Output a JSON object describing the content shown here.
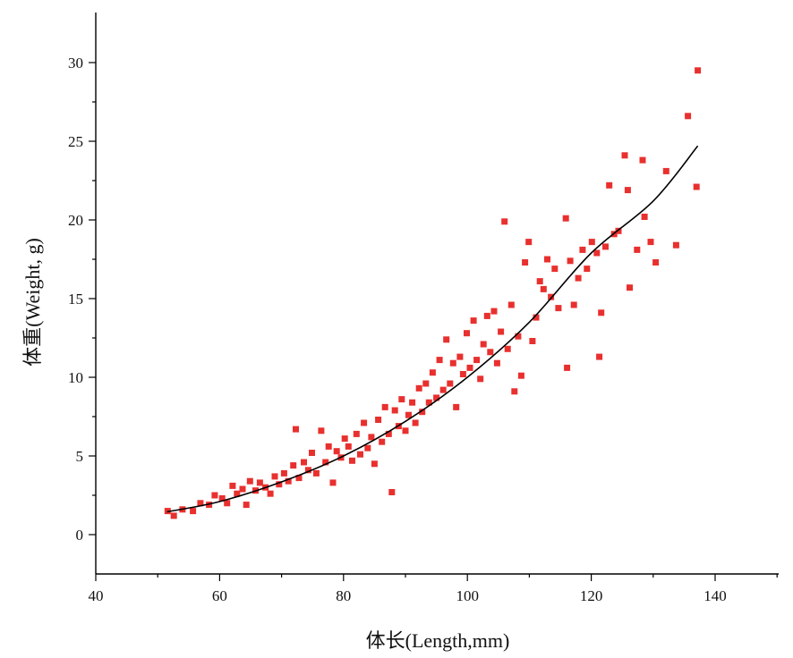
{
  "chart_data": {
    "type": "scatter",
    "xlabel": "体长(Length,mm)",
    "ylabel": "体重(Weight, g)",
    "xlim": [
      40,
      150
    ],
    "ylim": [
      -2.5,
      32.5
    ],
    "x_ticks": [
      40,
      60,
      80,
      100,
      120,
      140
    ],
    "y_ticks": [
      0,
      5,
      10,
      15,
      20,
      25,
      30
    ],
    "grid": false,
    "legend": "none",
    "colors": {
      "points": "#e8302e",
      "fit_line": "#000000",
      "axes": "#000000"
    },
    "series": [
      {
        "kind": "points",
        "marker": "square",
        "points": [
          [
            51.6,
            1.5
          ],
          [
            52.6,
            1.2
          ],
          [
            54,
            1.6
          ],
          [
            55.7,
            1.5
          ],
          [
            56.9,
            2.0
          ],
          [
            58.3,
            1.9
          ],
          [
            59.2,
            2.5
          ],
          [
            60.4,
            2.3
          ],
          [
            61.2,
            2.0
          ],
          [
            62.1,
            3.1
          ],
          [
            62.8,
            2.6
          ],
          [
            63.7,
            2.9
          ],
          [
            64.3,
            1.9
          ],
          [
            64.9,
            3.4
          ],
          [
            65.8,
            2.8
          ],
          [
            66.5,
            3.3
          ],
          [
            67.4,
            3.0
          ],
          [
            68.2,
            2.6
          ],
          [
            68.9,
            3.7
          ],
          [
            69.6,
            3.2
          ],
          [
            70.4,
            3.9
          ],
          [
            71.1,
            3.4
          ],
          [
            71.9,
            4.4
          ],
          [
            72.3,
            6.7
          ],
          [
            72.8,
            3.6
          ],
          [
            73.6,
            4.6
          ],
          [
            74.3,
            4.1
          ],
          [
            74.9,
            5.2
          ],
          [
            75.6,
            3.9
          ],
          [
            76.4,
            6.6
          ],
          [
            77.1,
            4.6
          ],
          [
            77.6,
            5.6
          ],
          [
            78.3,
            3.3
          ],
          [
            78.9,
            5.3
          ],
          [
            79.6,
            4.9
          ],
          [
            80.2,
            6.1
          ],
          [
            80.8,
            5.6
          ],
          [
            81.4,
            4.7
          ],
          [
            82.1,
            6.4
          ],
          [
            82.7,
            5.1
          ],
          [
            83.3,
            7.1
          ],
          [
            83.9,
            5.5
          ],
          [
            84.5,
            6.2
          ],
          [
            85,
            4.5
          ],
          [
            85.6,
            7.3
          ],
          [
            86.2,
            5.9
          ],
          [
            86.7,
            8.1
          ],
          [
            87.3,
            6.4
          ],
          [
            87.8,
            2.7
          ],
          [
            88.3,
            7.9
          ],
          [
            88.9,
            6.9
          ],
          [
            89.4,
            8.6
          ],
          [
            90,
            6.6
          ],
          [
            90.5,
            7.6
          ],
          [
            91.1,
            8.4
          ],
          [
            91.6,
            7.1
          ],
          [
            92.2,
            9.3
          ],
          [
            92.7,
            7.8
          ],
          [
            93.3,
            9.6
          ],
          [
            93.8,
            8.4
          ],
          [
            94.4,
            10.3
          ],
          [
            95,
            8.7
          ],
          [
            95.5,
            11.1
          ],
          [
            96.1,
            9.2
          ],
          [
            96.6,
            12.4
          ],
          [
            97.2,
            9.6
          ],
          [
            97.7,
            10.9
          ],
          [
            98.2,
            8.1
          ],
          [
            98.8,
            11.3
          ],
          [
            99.3,
            10.2
          ],
          [
            99.9,
            12.8
          ],
          [
            100.4,
            10.6
          ],
          [
            101,
            13.6
          ],
          [
            101.5,
            11.1
          ],
          [
            102.1,
            9.9
          ],
          [
            102.6,
            12.1
          ],
          [
            103.2,
            13.9
          ],
          [
            103.7,
            11.6
          ],
          [
            104.3,
            14.2
          ],
          [
            104.8,
            10.9
          ],
          [
            105.4,
            12.9
          ],
          [
            106,
            19.9
          ],
          [
            106.5,
            11.8
          ],
          [
            107.1,
            14.6
          ],
          [
            107.6,
            9.1
          ],
          [
            108.2,
            12.6
          ],
          [
            108.7,
            10.1
          ],
          [
            109.3,
            17.3
          ],
          [
            109.9,
            18.6
          ],
          [
            110.5,
            12.3
          ],
          [
            111.1,
            13.8
          ],
          [
            111.7,
            16.1
          ],
          [
            112.3,
            15.6
          ],
          [
            112.9,
            17.5
          ],
          [
            113.5,
            15.1
          ],
          [
            114.1,
            16.9
          ],
          [
            114.7,
            14.4
          ],
          [
            115.9,
            20.1
          ],
          [
            116.1,
            10.6
          ],
          [
            116.6,
            17.4
          ],
          [
            117.2,
            14.6
          ],
          [
            117.9,
            16.3
          ],
          [
            118.6,
            18.1
          ],
          [
            119.3,
            16.9
          ],
          [
            120.1,
            18.6
          ],
          [
            120.9,
            17.9
          ],
          [
            121.3,
            11.3
          ],
          [
            121.6,
            14.1
          ],
          [
            122.3,
            18.3
          ],
          [
            122.9,
            22.2
          ],
          [
            123.7,
            19.1
          ],
          [
            124.4,
            19.3
          ],
          [
            125.4,
            24.1
          ],
          [
            125.9,
            21.9
          ],
          [
            126.2,
            15.7
          ],
          [
            127.4,
            18.1
          ],
          [
            128.3,
            23.8
          ],
          [
            128.6,
            20.2
          ],
          [
            129.6,
            18.6
          ],
          [
            130.4,
            17.3
          ],
          [
            132.1,
            23.1
          ],
          [
            133.7,
            18.4
          ],
          [
            135.6,
            26.6
          ],
          [
            137,
            22.1
          ],
          [
            137.2,
            29.5
          ]
        ]
      },
      {
        "kind": "fit_line",
        "x_range": [
          51.5,
          137.2
        ],
        "points": [
          [
            51.5,
            1.45
          ],
          [
            60,
            2.1
          ],
          [
            70,
            3.35
          ],
          [
            80,
            5.0
          ],
          [
            90,
            7.2
          ],
          [
            100,
            10.0
          ],
          [
            110,
            13.5
          ],
          [
            120,
            17.9
          ],
          [
            130,
            21.2
          ],
          [
            137.2,
            24.7
          ]
        ]
      }
    ]
  }
}
